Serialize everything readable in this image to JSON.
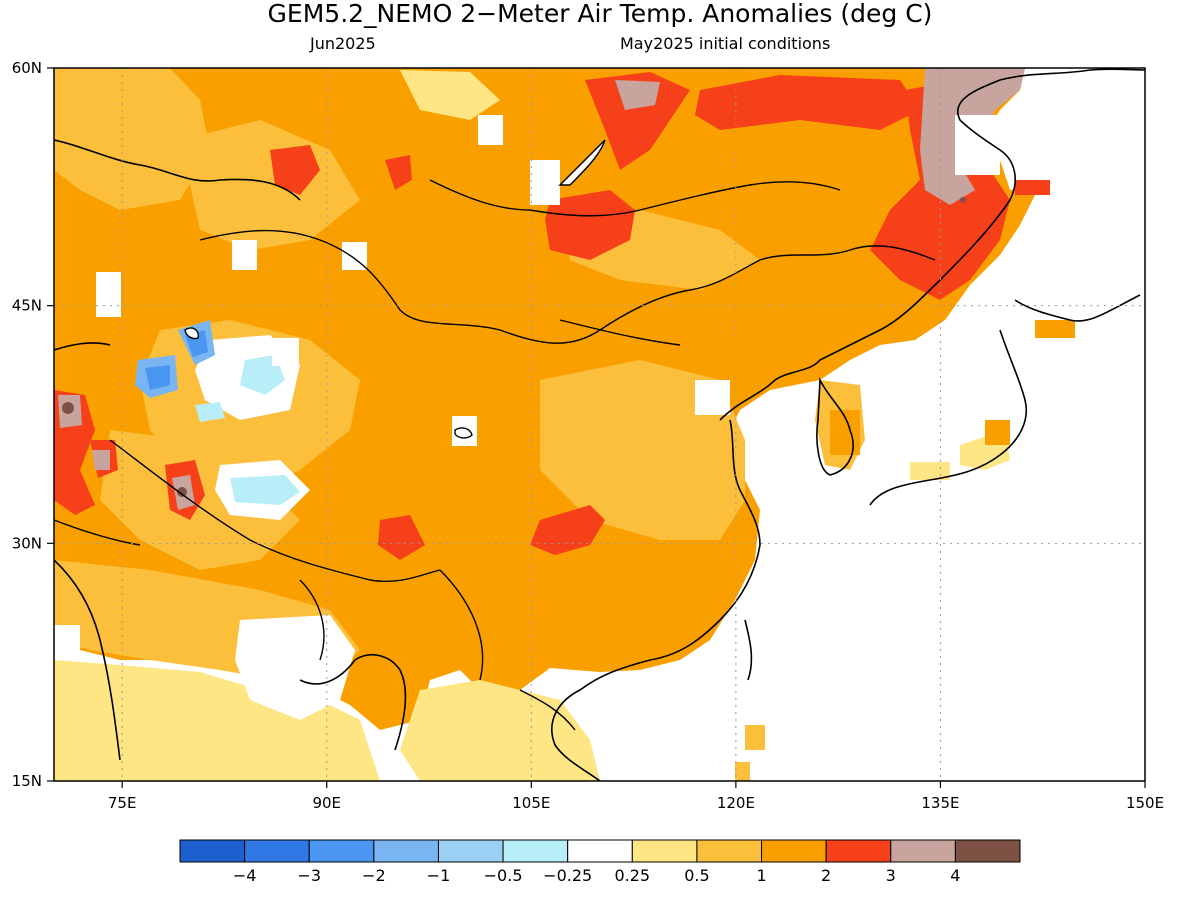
{
  "title": "GEM5.2_NEMO 2−Meter Air Temp. Anomalies (deg C)",
  "subtitle_left": "Jun2025",
  "subtitle_right": "May2025 initial conditions",
  "map": {
    "lon_range": [
      70,
      150
    ],
    "lat_range": [
      15,
      60
    ],
    "x_ticks": [
      {
        "lon": 75,
        "label": "75E"
      },
      {
        "lon": 90,
        "label": "90E"
      },
      {
        "lon": 105,
        "label": "105E"
      },
      {
        "lon": 120,
        "label": "120E"
      },
      {
        "lon": 135,
        "label": "135E"
      },
      {
        "lon": 150,
        "label": "150E"
      }
    ],
    "y_ticks": [
      {
        "lat": 60,
        "label": "60N"
      },
      {
        "lat": 45,
        "label": "45N"
      },
      {
        "lat": 30,
        "label": "30N"
      },
      {
        "lat": 15,
        "label": "15N"
      }
    ],
    "gridlines": true
  },
  "colorbar": {
    "colors": [
      "#1e5fd0",
      "#2f78e6",
      "#4a96f0",
      "#78b5f2",
      "#9bd0f5",
      "#b7eef8",
      "#ffffff",
      "#fee684",
      "#fcbf3c",
      "#f9a000",
      "#f5401a",
      "#c8a49e",
      "#7d5245"
    ],
    "labels": [
      "−4",
      "−3",
      "−2",
      "−1",
      "−0.5",
      "−0.25",
      "0.25",
      "0.5",
      "1",
      "2",
      "3",
      "4"
    ]
  },
  "anomaly_regions": [
    {
      "name": "broad-warm-background",
      "level": "1 to 2",
      "color": "#f9a000"
    },
    {
      "name": "mid-warm-zones",
      "level": "0.5 to 1",
      "color": "#fcbf3c"
    },
    {
      "name": "weak-warm-zones",
      "level": "0.25 to 0.5",
      "color": "#fee684"
    },
    {
      "name": "strong-warm-patches",
      "level": "2 to 3",
      "color": "#f5401a"
    },
    {
      "name": "very-warm-patches",
      "level": "3 to 4",
      "color": "#c8a49e"
    },
    {
      "name": "extreme-warm-spots",
      "level": "above 4",
      "color": "#7d5245"
    },
    {
      "name": "cool-patches-xinjiang",
      "level": "-0.25 to -3",
      "color": "#4a96f0"
    },
    {
      "name": "near-zero-areas",
      "level": "-0.25 to 0.25",
      "color": "#ffffff"
    }
  ]
}
